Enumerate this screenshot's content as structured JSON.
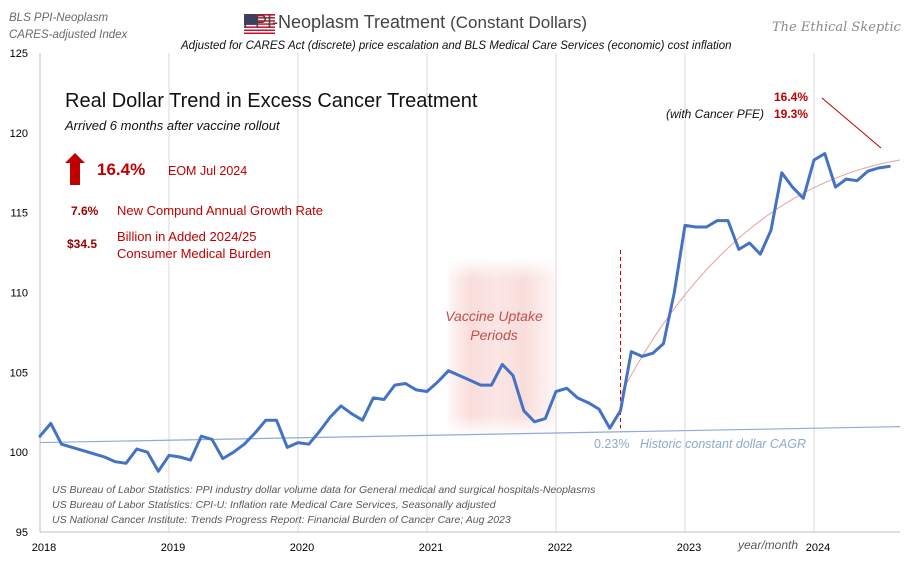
{
  "header": {
    "left_line1": "BLS PPI-Neoplasm",
    "left_line2": "CARES-adjusted Index",
    "title_main": "PPI-Neoplasm Treatment",
    "title_sub": "(Constant Dollars)",
    "subtitle": "Adjusted for CARES Act (discrete)  price escalation and BLS Medical Care Services (economic) cost inflation",
    "brand": "The Ethical Skeptic",
    "flag_icon": "us-flag-icon"
  },
  "callouts": {
    "headline": "Real Dollar Trend in Excess Cancer Treatment",
    "arrived": "Arrived 6 months after vaccine rollout",
    "increase_pct": "16.4%",
    "increase_label": "EOM Jul 2024",
    "cagr_value": "7.6%",
    "cagr_label": "New Compund Annual Growth Rate",
    "burden_value": "$34.5",
    "burden_label": "Billion in Added 2024/25 Consumer Medical Burden",
    "pfe_value_1": "16.4%",
    "pfe_label": "(with Cancer PFE)",
    "pfe_value_2": "19.3%",
    "vaccine_label": "Vaccine Uptake Periods",
    "historic_pct": "0.23%",
    "historic_label": "Historic constant dollar CAGR",
    "xaxis_note": "year/month"
  },
  "sources": [
    "US Bureau of Labor Statistics: PPI industry dollar volume data for General medical and surgical hospitals-Neoplasms",
    "US Bureau of Labor Statistics: CPI-U: Inflation rate Medical Care Services, Seasonally adjusted",
    "US National Cancer Institute: Trends Progress Report: Financial Burden of Cancer Care; Aug 2023"
  ],
  "colors": {
    "series": "#4472c4",
    "trend": "#8faadc",
    "accent_red": "#c00000",
    "vaccine_band": "#f4c7c3",
    "fit_curve": "#e8a0a0",
    "grid": "#d9d9d9"
  },
  "chart_data": {
    "type": "line",
    "title": "PPI-Neoplasm Treatment (Constant Dollars)",
    "ylabel": "",
    "xlabel": "year/month",
    "ylim": [
      95,
      125
    ],
    "y_ticks": [
      95,
      100,
      105,
      110,
      115,
      120,
      125
    ],
    "x_ticks": [
      "2018",
      "2019",
      "2020",
      "2021",
      "2022",
      "2023",
      "2024"
    ],
    "x_range_months": [
      0,
      80
    ],
    "grid": "vertical gridlines at each year",
    "vaccine_band_months": [
      38,
      48
    ],
    "vaccine_rollout_marker_month": 54,
    "series": [
      {
        "name": "PPI-Neoplasm CARES-adjusted Index",
        "months": [
          0,
          1,
          2,
          3,
          4,
          5,
          6,
          7,
          8,
          9,
          10,
          11,
          12,
          13,
          14,
          15,
          16,
          17,
          18,
          19,
          20,
          21,
          22,
          23,
          24,
          25,
          26,
          27,
          28,
          29,
          30,
          31,
          32,
          33,
          34,
          35,
          36,
          37,
          38,
          39,
          40,
          41,
          42,
          43,
          44,
          45,
          46,
          47,
          48,
          49,
          50,
          51,
          52,
          53,
          54,
          55,
          56,
          57,
          58,
          59,
          60,
          61,
          62,
          63,
          64,
          65,
          66,
          67,
          68,
          69,
          70,
          71,
          72,
          73,
          74,
          75,
          76,
          77,
          78,
          79
        ],
        "values": [
          101.0,
          101.8,
          100.5,
          100.3,
          100.1,
          99.9,
          99.7,
          99.4,
          99.3,
          100.2,
          100.0,
          98.8,
          99.8,
          99.7,
          99.5,
          101.0,
          100.8,
          99.6,
          100.0,
          100.5,
          101.2,
          102.0,
          102.0,
          100.3,
          100.6,
          100.5,
          101.3,
          102.2,
          102.9,
          102.4,
          102.0,
          103.4,
          103.3,
          104.2,
          104.3,
          103.9,
          103.8,
          104.4,
          105.1,
          104.8,
          104.5,
          104.2,
          104.2,
          105.5,
          104.8,
          102.6,
          101.9,
          102.1,
          103.8,
          104.0,
          103.4,
          103.1,
          102.7,
          101.5,
          102.6,
          106.3,
          106.0,
          106.2,
          106.8,
          110.0,
          114.2,
          114.1,
          114.1,
          114.5,
          114.5,
          112.7,
          113.1,
          112.4,
          113.9,
          117.5,
          116.6,
          115.9,
          118.3,
          118.7,
          116.6,
          117.1,
          117.0,
          117.6,
          117.8,
          117.9
        ]
      },
      {
        "name": "Historic constant dollar CAGR trend",
        "months": [
          0,
          80
        ],
        "values": [
          100.6,
          101.6
        ]
      }
    ]
  }
}
